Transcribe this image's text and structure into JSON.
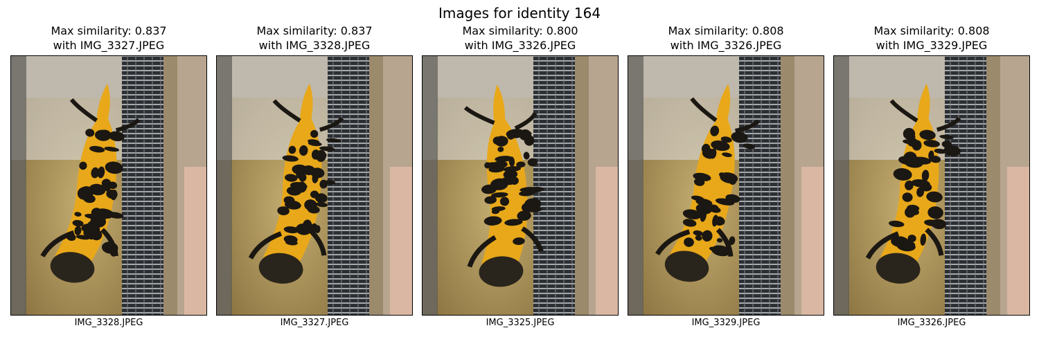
{
  "figure": {
    "title": "Images for identity 164"
  },
  "panels": [
    {
      "similarity_line": "Max similarity: 0.837",
      "match_line": "with IMG_3327.JPEG",
      "filename": "IMG_3328.JPEG",
      "tilt": 8
    },
    {
      "similarity_line": "Max similarity: 0.837",
      "match_line": "with IMG_3328.JPEG",
      "filename": "IMG_3327.JPEG",
      "tilt": 6
    },
    {
      "similarity_line": "Max similarity: 0.800",
      "match_line": "with IMG_3326.JPEG",
      "filename": "IMG_3325.JPEG",
      "tilt": -4
    },
    {
      "similarity_line": "Max similarity: 0.808",
      "match_line": "with IMG_3326.JPEG",
      "filename": "IMG_3329.JPEG",
      "tilt": 10
    },
    {
      "similarity_line": "Max similarity: 0.808",
      "match_line": "with IMG_3329.JPEG",
      "filename": "IMG_3326.JPEG",
      "tilt": 6
    }
  ],
  "colors": {
    "newt_orange": "#e8a81a",
    "newt_black": "#1b1712",
    "sand": "#b39a5e",
    "mesh": "#2c2f33"
  }
}
